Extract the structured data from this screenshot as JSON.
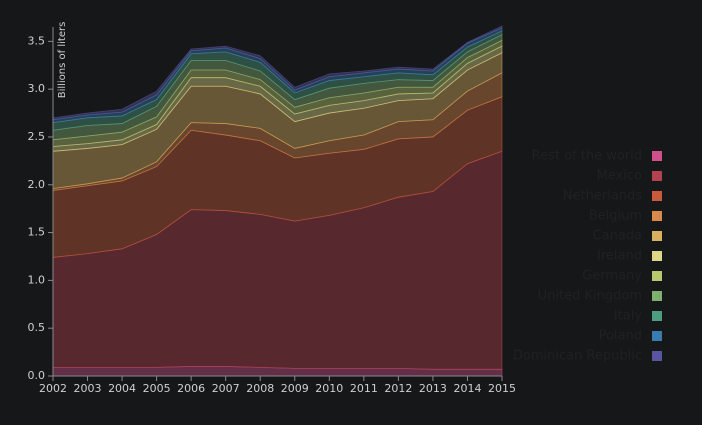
{
  "chart_data": {
    "type": "stacked-area",
    "y_label": "Billions of liters",
    "x": [
      2002,
      2003,
      2004,
      2005,
      2006,
      2007,
      2008,
      2009,
      2010,
      2011,
      2012,
      2013,
      2014,
      2015
    ],
    "xlim": [
      2002,
      2015
    ],
    "xticks": [
      2002,
      2003,
      2004,
      2005,
      2006,
      2007,
      2008,
      2009,
      2010,
      2011,
      2012,
      2013,
      2014,
      2015
    ],
    "ylim": [
      0,
      3.65
    ],
    "yticks": [
      {
        "value": 0,
        "label": "0.0"
      },
      {
        "value": 0.5,
        "label": "0.5"
      },
      {
        "value": 1,
        "label": "1.0"
      },
      {
        "value": 1.5,
        "label": "1.5"
      },
      {
        "value": 2,
        "label": "2.0"
      },
      {
        "value": 2.5,
        "label": "2.5"
      },
      {
        "value": 3,
        "label": "3.0"
      },
      {
        "value": 3.5,
        "label": "3.5"
      }
    ],
    "series": [
      {
        "name": "Rest of the world",
        "color": "#d0508a",
        "values": [
          0.09,
          0.09,
          0.09,
          0.09,
          0.1,
          0.1,
          0.09,
          0.08,
          0.08,
          0.08,
          0.08,
          0.07,
          0.07,
          0.07
        ]
      },
      {
        "name": "Mexico",
        "color": "#b2424f",
        "values": [
          1.15,
          1.19,
          1.24,
          1.39,
          1.64,
          1.63,
          1.6,
          1.54,
          1.6,
          1.68,
          1.79,
          1.86,
          2.15,
          2.28
        ]
      },
      {
        "name": "Netherlands",
        "color": "#c85b3c",
        "values": [
          0.7,
          0.71,
          0.71,
          0.71,
          0.83,
          0.79,
          0.77,
          0.66,
          0.65,
          0.61,
          0.61,
          0.57,
          0.56,
          0.57
        ]
      },
      {
        "name": "Belgium",
        "color": "#d9894a",
        "values": [
          0.02,
          0.02,
          0.03,
          0.05,
          0.08,
          0.12,
          0.13,
          0.1,
          0.13,
          0.15,
          0.18,
          0.18,
          0.2,
          0.25
        ]
      },
      {
        "name": "Canada",
        "color": "#d8b060",
        "values": [
          0.39,
          0.37,
          0.35,
          0.34,
          0.38,
          0.39,
          0.36,
          0.28,
          0.29,
          0.28,
          0.22,
          0.22,
          0.22,
          0.21
        ]
      },
      {
        "name": "Ireland",
        "color": "#dcd888",
        "values": [
          0.05,
          0.05,
          0.05,
          0.05,
          0.09,
          0.09,
          0.08,
          0.08,
          0.08,
          0.08,
          0.07,
          0.06,
          0.07,
          0.07
        ]
      },
      {
        "name": "Germany",
        "color": "#b9c870",
        "values": [
          0.07,
          0.08,
          0.08,
          0.08,
          0.08,
          0.08,
          0.07,
          0.07,
          0.08,
          0.08,
          0.07,
          0.06,
          0.06,
          0.06
        ]
      },
      {
        "name": "United Kingdom",
        "color": "#80b070",
        "values": [
          0.1,
          0.11,
          0.09,
          0.11,
          0.1,
          0.1,
          0.09,
          0.08,
          0.1,
          0.1,
          0.08,
          0.07,
          0.06,
          0.06
        ]
      },
      {
        "name": "Italy",
        "color": "#4f9d80",
        "values": [
          0.08,
          0.08,
          0.08,
          0.07,
          0.07,
          0.09,
          0.09,
          0.07,
          0.08,
          0.07,
          0.07,
          0.06,
          0.05,
          0.04
        ]
      },
      {
        "name": "Poland",
        "color": "#3a7cb0",
        "values": [
          0.03,
          0.03,
          0.04,
          0.05,
          0.03,
          0.04,
          0.04,
          0.03,
          0.04,
          0.04,
          0.04,
          0.04,
          0.04,
          0.03
        ]
      },
      {
        "name": "Dominican Republic",
        "color": "#5a55a0",
        "values": [
          0.02,
          0.02,
          0.03,
          0.04,
          0.02,
          0.02,
          0.03,
          0.03,
          0.03,
          0.02,
          0.02,
          0.02,
          0.01,
          0.02
        ]
      }
    ]
  }
}
